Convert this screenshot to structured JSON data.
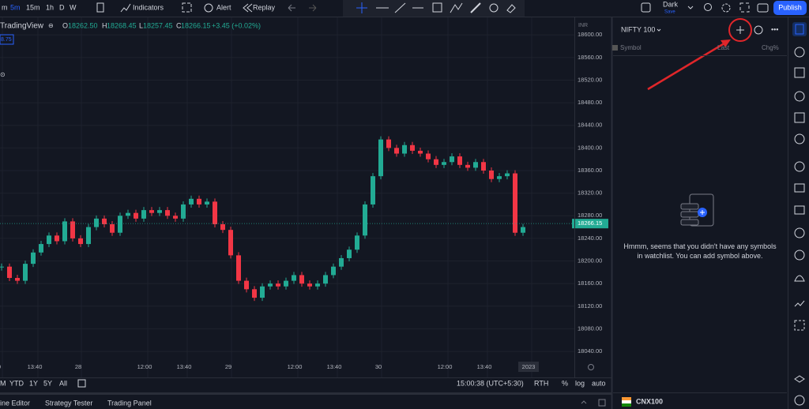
{
  "toolbar": {
    "intervals": [
      "m",
      "5m",
      "15m",
      "1h",
      "D",
      "W"
    ],
    "indicators": "Indicators",
    "alert": "Alert",
    "replay": "Replay",
    "theme": "Dark",
    "save": "Save",
    "publish": "Publish"
  },
  "chart_data": {
    "type": "candlestick",
    "source": "TradingView",
    "badge": "8.75",
    "legend": {
      "o_label": "O",
      "o": "18262.50",
      "h_label": "H",
      "h": "18268.45",
      "l_label": "L",
      "l": "18257.45",
      "c_label": "C",
      "c": "18266.15",
      "change": "+3.45 (+0.02%)"
    },
    "currency": "INR",
    "ylim": [
      17994,
      18631
    ],
    "yticks": [
      {
        "value": 18600,
        "label": "18600.00"
      },
      {
        "value": 18560,
        "label": "18560.00"
      },
      {
        "value": 18520,
        "label": "18520.00"
      },
      {
        "value": 18480,
        "label": "18480.00"
      },
      {
        "value": 18440,
        "label": "18440.00"
      },
      {
        "value": 18400,
        "label": "18400.00"
      },
      {
        "value": 18360,
        "label": "18360.00"
      },
      {
        "value": 18320,
        "label": "18320.00"
      },
      {
        "value": 18280,
        "label": "18280.00"
      },
      {
        "value": 18240,
        "label": "18240.00"
      },
      {
        "value": 18200,
        "label": "18200.00"
      },
      {
        "value": 18160,
        "label": "18160.00"
      },
      {
        "value": 18120,
        "label": "18120.00"
      },
      {
        "value": 18080,
        "label": "18080.00"
      },
      {
        "value": 18040,
        "label": "18040.00"
      }
    ],
    "last_price": {
      "value": 18266.15,
      "label": "18266.15"
    },
    "close": [
      18190,
      18170,
      18165,
      18195,
      18215,
      18230,
      18245,
      18235,
      18270,
      18240,
      18230,
      18260,
      18275,
      18265,
      18250,
      18280,
      18285,
      18275,
      18290,
      18285,
      18290,
      18280,
      18275,
      18300,
      18310,
      18300,
      18305,
      18265,
      18255,
      18210,
      18165,
      18150,
      18135,
      18155,
      18160,
      18155,
      18165,
      18175,
      18160,
      18155,
      18160,
      18175,
      18190,
      18205,
      18220,
      18245,
      18300,
      18350,
      18415,
      18400,
      18390,
      18405,
      18395,
      18390,
      18380,
      18370,
      18375,
      18385,
      18370,
      18365,
      18375,
      18360,
      18345,
      18350,
      18355,
      18250,
      18260
    ],
    "x_labels": [
      "0",
      "13:40",
      "28",
      "12:00",
      "13:40",
      "29",
      "12:00",
      "13:40",
      "30",
      "12:00",
      "13:40",
      "2023"
    ]
  },
  "bottom_bar": {
    "ranges": [
      "M",
      "YTD",
      "1Y",
      "5Y",
      "All"
    ],
    "time": "15:00:38 (UTC+5:30)",
    "rth": "RTH",
    "percent": "%",
    "log": "log",
    "auto": "auto"
  },
  "tabs": [
    "ine Editor",
    "Strategy Tester",
    "Trading Panel"
  ],
  "watchlist": {
    "title": "NIFTY 100",
    "columns": [
      "Symbol",
      "Last",
      "Chg%"
    ],
    "empty_message": "Hmmm, seems that you didn't have any symbols in watchlist. You can add symbol above.",
    "footer_symbol": "CNX100"
  }
}
